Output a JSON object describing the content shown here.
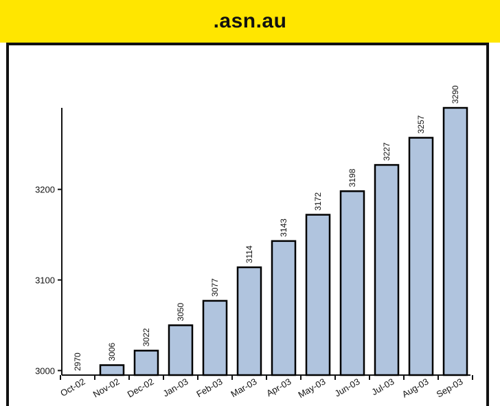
{
  "header": {
    "title": ".asn.au"
  },
  "chart_data": {
    "type": "bar",
    "title": ".asn.au",
    "xlabel": "",
    "ylabel": "",
    "categories": [
      "Oct-02",
      "Nov-02",
      "Dec-02",
      "Jan-03",
      "Feb-03",
      "Mar-03",
      "Apr-03",
      "May-03",
      "Jun-03",
      "Jul-03",
      "Aug-03",
      "Sep-03"
    ],
    "values": [
      2970,
      3006,
      3022,
      3050,
      3077,
      3114,
      3143,
      3172,
      3198,
      3227,
      3257,
      3290
    ],
    "ylim": [
      2995,
      3290
    ],
    "yticks": [
      3000,
      3100,
      3200
    ],
    "grid": false,
    "colors": {
      "bar_fill": "#b0c4de",
      "bar_stroke": "#000000",
      "title_band": "#ffe600"
    }
  }
}
